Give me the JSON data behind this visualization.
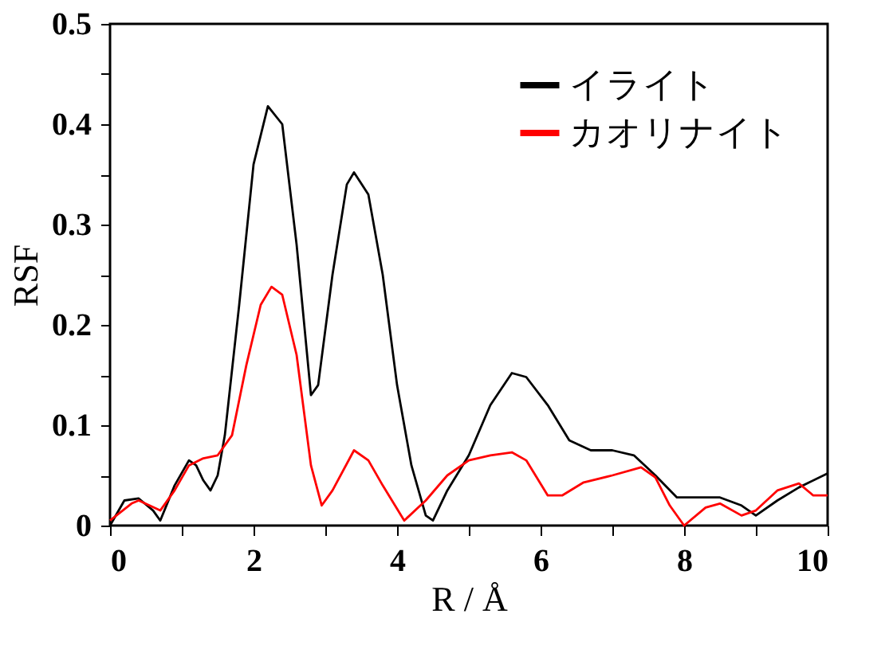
{
  "chart_data": {
    "type": "line",
    "xlabel": "R / Å",
    "ylabel": "RSF",
    "xlim": [
      0,
      10
    ],
    "ylim": [
      0,
      0.5
    ],
    "xticks": [
      0,
      {
        "value": 1,
        "label": null
      },
      2,
      {
        "value": 3,
        "label": null
      },
      4,
      {
        "value": 5,
        "label": null
      },
      6,
      {
        "value": 7,
        "label": null
      },
      8,
      {
        "value": 9,
        "label": null
      },
      10
    ],
    "yticks": [
      0,
      {
        "value": 0.05,
        "label": null
      },
      0.1,
      {
        "value": 0.15,
        "label": null
      },
      0.2,
      {
        "value": 0.25,
        "label": null
      },
      0.3,
      {
        "value": 0.35,
        "label": null
      },
      0.4,
      {
        "value": 0.45,
        "label": null
      },
      0.5
    ],
    "grid": false,
    "legend": "top right",
    "marker": "none",
    "line_style": "solid",
    "series": [
      {
        "name": "イライト",
        "color": "#000000",
        "x": [
          0,
          0.2,
          0.4,
          0.6,
          0.7,
          0.9,
          1.1,
          1.2,
          1.3,
          1.4,
          1.5,
          1.6,
          1.8,
          2.0,
          2.2,
          2.4,
          2.6,
          2.8,
          2.9,
          3.1,
          3.3,
          3.4,
          3.6,
          3.8,
          4.0,
          4.2,
          4.4,
          4.5,
          4.7,
          5.0,
          5.3,
          5.6,
          5.8,
          6.1,
          6.4,
          6.7,
          7.0,
          7.3,
          7.6,
          7.9,
          8.5,
          8.8,
          9.0,
          9.3,
          9.6,
          10
        ],
        "values": [
          0,
          0.025,
          0.027,
          0.015,
          0.005,
          0.04,
          0.065,
          0.06,
          0.045,
          0.035,
          0.05,
          0.09,
          0.22,
          0.36,
          0.418,
          0.4,
          0.28,
          0.13,
          0.14,
          0.25,
          0.34,
          0.352,
          0.33,
          0.25,
          0.14,
          0.06,
          0.01,
          0.005,
          0.035,
          0.07,
          0.12,
          0.152,
          0.148,
          0.12,
          0.085,
          0.075,
          0.075,
          0.07,
          0.05,
          0.028,
          0.028,
          0.02,
          0.01,
          0.025,
          0.038,
          0.052
        ]
      },
      {
        "name": "カオリナイト",
        "color": "#ff0000",
        "x": [
          0,
          0.3,
          0.4,
          0.7,
          0.9,
          1.1,
          1.3,
          1.5,
          1.7,
          1.9,
          2.1,
          2.25,
          2.4,
          2.6,
          2.8,
          2.95,
          3.1,
          3.4,
          3.6,
          3.8,
          4.1,
          4.4,
          4.7,
          5.0,
          5.3,
          5.6,
          5.8,
          6.1,
          6.3,
          6.6,
          7.0,
          7.4,
          7.6,
          7.8,
          8.0,
          8.3,
          8.5,
          8.8,
          9.0,
          9.3,
          9.6,
          9.8,
          10
        ],
        "values": [
          0.005,
          0.022,
          0.025,
          0.015,
          0.035,
          0.06,
          0.067,
          0.07,
          0.09,
          0.16,
          0.22,
          0.238,
          0.23,
          0.17,
          0.06,
          0.02,
          0.035,
          0.075,
          0.065,
          0.04,
          0.005,
          0.025,
          0.05,
          0.065,
          0.07,
          0.073,
          0.065,
          0.03,
          0.03,
          0.043,
          0.05,
          0.058,
          0.048,
          0.02,
          0.0,
          0.018,
          0.022,
          0.01,
          0.015,
          0.035,
          0.042,
          0.03,
          0.03
        ]
      }
    ]
  }
}
